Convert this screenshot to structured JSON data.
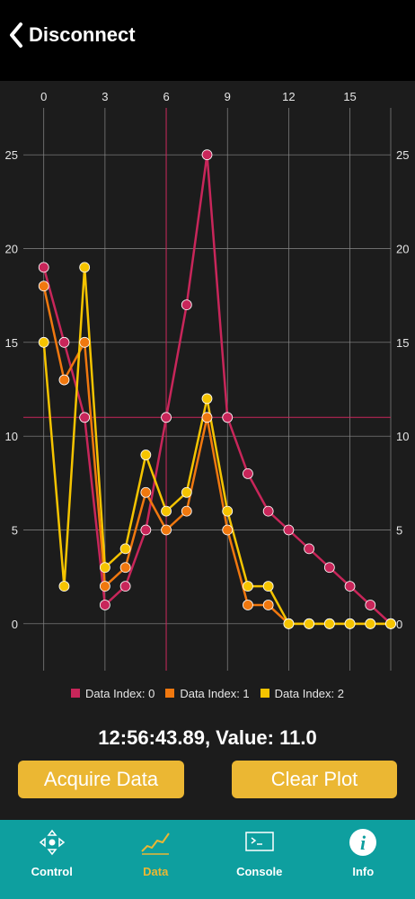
{
  "header": {
    "back_label": "Disconnect"
  },
  "chart_data": {
    "type": "line",
    "x": [
      0,
      1,
      2,
      3,
      4,
      5,
      6,
      7,
      8,
      9,
      10,
      11,
      12,
      13,
      14,
      15,
      16,
      17
    ],
    "series": [
      {
        "name": "Data Index: 0",
        "color": "#c8265a",
        "values": [
          19,
          15,
          11,
          1,
          2,
          5,
          11,
          17,
          25,
          11,
          8,
          6,
          5,
          4,
          3,
          2,
          1,
          0
        ]
      },
      {
        "name": "Data Index: 1",
        "color": "#f0780f",
        "values": [
          18,
          13,
          15,
          2,
          3,
          7,
          5,
          6,
          11,
          5,
          1,
          1,
          0,
          0,
          0,
          0,
          0,
          0
        ]
      },
      {
        "name": "Data Index: 2",
        "color": "#f5c400",
        "values": [
          15,
          2,
          19,
          3,
          4,
          9,
          6,
          7,
          12,
          6,
          2,
          2,
          0,
          0,
          0,
          0,
          0,
          0
        ]
      }
    ],
    "x_ticks": [
      0,
      3,
      6,
      9,
      12,
      15
    ],
    "y_ticks": [
      0,
      5,
      10,
      15,
      20,
      25
    ],
    "xlim": [
      -1,
      17
    ],
    "ylim": [
      -2.5,
      27.5
    ],
    "x_axis_position": "top",
    "y_axis_position": "left and right",
    "grid": true,
    "crosshair": {
      "x": 6,
      "y": 11.0,
      "color": "#c8265a"
    },
    "legend_position": "bottom-center"
  },
  "readout": {
    "text": "12:56:43.89, Value: 11.0"
  },
  "buttons": {
    "acquire": "Acquire Data",
    "clear": "Clear Plot"
  },
  "tabs": [
    {
      "label": "Control",
      "icon": "dpad-icon"
    },
    {
      "label": "Data",
      "icon": "chart-icon",
      "active": true
    },
    {
      "label": "Console",
      "icon": "terminal-icon"
    },
    {
      "label": "Info",
      "icon": "info-icon"
    }
  ],
  "colors": {
    "accent": "#ebb733",
    "tab_bar": "#0e9f9f"
  }
}
